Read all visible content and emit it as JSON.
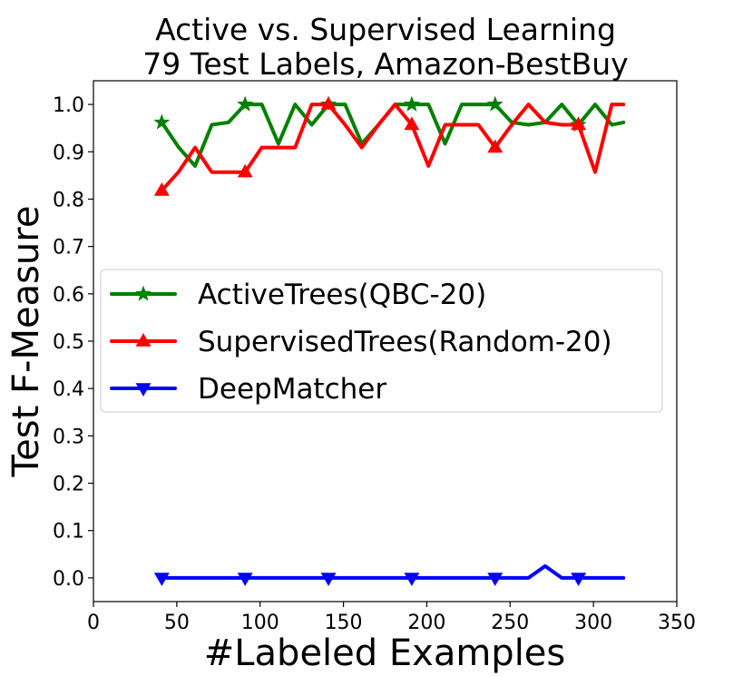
{
  "chart_data": {
    "type": "line",
    "title_lines": [
      "Active vs. Supervised Learning",
      "79 Test Labels, Amazon-BestBuy"
    ],
    "xlabel": "#Labeled Examples",
    "ylabel": "Test F-Measure",
    "xlim": [
      0,
      350
    ],
    "ylim": [
      -0.05,
      1.05
    ],
    "xticks": [
      0,
      50,
      100,
      150,
      200,
      250,
      300,
      350
    ],
    "xtick_labels": [
      "0",
      "50",
      "100",
      "150",
      "200",
      "250",
      "300",
      "350"
    ],
    "yticks": [
      0.0,
      0.1,
      0.2,
      0.3,
      0.4,
      0.5,
      0.6,
      0.7,
      0.8,
      0.9,
      1.0
    ],
    "ytick_labels": [
      "0.0",
      "0.1",
      "0.2",
      "0.3",
      "0.4",
      "0.5",
      "0.6",
      "0.7",
      "0.8",
      "0.9",
      "1.0"
    ],
    "grid": false,
    "legend_position": "center-left",
    "series": [
      {
        "name": "ActiveTrees(QBC-20)",
        "color": "#008000",
        "marker": "star",
        "x": [
          41,
          51,
          61,
          71,
          81,
          91,
          101,
          111,
          121,
          131,
          141,
          151,
          161,
          171,
          181,
          191,
          201,
          211,
          221,
          231,
          241,
          251,
          261,
          271,
          281,
          291,
          301,
          311,
          318
        ],
        "y": [
          0.962,
          0.91,
          0.87,
          0.957,
          0.962,
          1.0,
          1.0,
          0.917,
          1.0,
          0.957,
          1.0,
          1.0,
          0.917,
          0.957,
          1.0,
          1.0,
          1.0,
          0.917,
          1.0,
          1.0,
          1.0,
          0.962,
          0.957,
          0.962,
          1.0,
          0.957,
          1.0,
          0.957,
          0.962
        ],
        "marker_every": [
          0,
          5,
          10,
          15,
          20,
          25
        ]
      },
      {
        "name": "SupervisedTrees(Random-20)",
        "color": "#ff0000",
        "marker": "triangle-up",
        "x": [
          41,
          51,
          61,
          71,
          81,
          91,
          101,
          111,
          121,
          131,
          141,
          151,
          161,
          171,
          181,
          191,
          201,
          211,
          221,
          231,
          241,
          251,
          261,
          271,
          281,
          291,
          301,
          311,
          318
        ],
        "y": [
          0.818,
          0.857,
          0.909,
          0.857,
          0.857,
          0.857,
          0.909,
          0.909,
          0.909,
          1.0,
          1.0,
          0.957,
          0.909,
          0.957,
          1.0,
          0.957,
          0.87,
          0.957,
          0.957,
          0.957,
          0.909,
          0.957,
          1.0,
          0.962,
          0.957,
          0.957,
          0.857,
          1.0,
          1.0
        ],
        "marker_every": [
          0,
          5,
          10,
          15,
          20,
          25
        ]
      },
      {
        "name": "DeepMatcher",
        "color": "#0000ff",
        "marker": "triangle-down",
        "x": [
          41,
          51,
          61,
          71,
          81,
          91,
          101,
          111,
          121,
          131,
          141,
          151,
          161,
          171,
          181,
          191,
          201,
          211,
          221,
          231,
          241,
          251,
          261,
          271,
          281,
          291,
          301,
          311,
          318
        ],
        "y": [
          0,
          0,
          0,
          0,
          0,
          0,
          0,
          0,
          0,
          0,
          0,
          0,
          0,
          0,
          0,
          0,
          0,
          0,
          0,
          0,
          0,
          0,
          0,
          0.025,
          0,
          0,
          0,
          0,
          0
        ],
        "marker_every": [
          0,
          5,
          10,
          15,
          20,
          25
        ]
      }
    ]
  }
}
